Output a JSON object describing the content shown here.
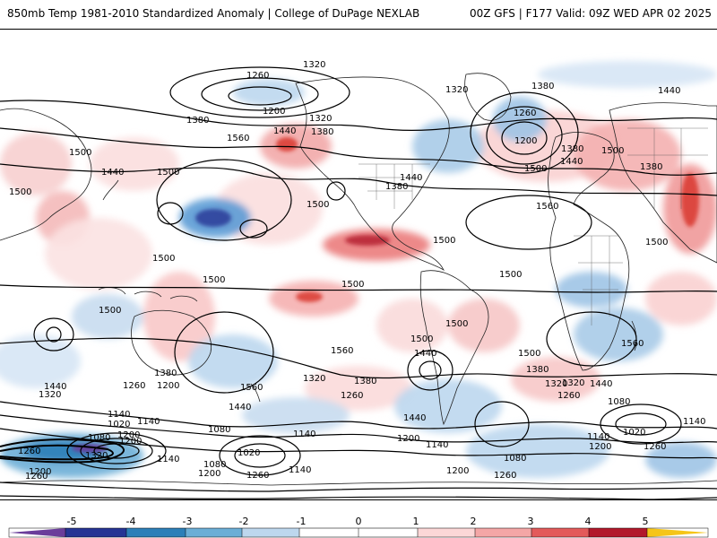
{
  "header": {
    "title": "850mb Temp 1981-2010 Standardized Anomaly | College of DuPage NEXLAB",
    "run_info": "00Z GFS | F177 Valid: 09Z WED APR 02 2025"
  },
  "colorbar": {
    "ticks": [
      "-5",
      "-4",
      "-3",
      "-2",
      "-1",
      "0",
      "1",
      "2",
      "3",
      "4",
      "5"
    ],
    "colors": [
      "#6a3d9a",
      "#253494",
      "#2c7fb8",
      "#6baed6",
      "#bdd7ee",
      "#ffffff",
      "#fcd7d7",
      "#f4a6a6",
      "#e35a5a",
      "#b2182b",
      "#67000d",
      "#f5c518"
    ]
  },
  "contour_labels": [
    {
      "text": "1320"
    },
    {
      "text": "1260"
    },
    {
      "text": "1200"
    },
    {
      "text": "1380"
    },
    {
      "text": "1440"
    },
    {
      "text": "1560"
    },
    {
      "text": "1500"
    },
    {
      "text": "1500"
    },
    {
      "text": "1440"
    },
    {
      "text": "1500"
    },
    {
      "text": "1320"
    },
    {
      "text": "1380"
    },
    {
      "text": "1440"
    },
    {
      "text": "1380"
    },
    {
      "text": "1500"
    },
    {
      "text": "1320"
    },
    {
      "text": "1380"
    },
    {
      "text": "1260"
    },
    {
      "text": "1200"
    },
    {
      "text": "1380"
    },
    {
      "text": "1440"
    },
    {
      "text": "1440"
    },
    {
      "text": "1500"
    },
    {
      "text": "1380"
    },
    {
      "text": "1500"
    },
    {
      "text": "1560"
    },
    {
      "text": "1500"
    },
    {
      "text": "1500"
    },
    {
      "text": "1500"
    },
    {
      "text": "1500"
    },
    {
      "text": "1500"
    },
    {
      "text": "1500"
    },
    {
      "text": "1500"
    },
    {
      "text": "1500"
    },
    {
      "text": "1560"
    },
    {
      "text": "1560"
    },
    {
      "text": "1500"
    },
    {
      "text": "1440"
    },
    {
      "text": "1380"
    },
    {
      "text": "1320"
    },
    {
      "text": "1500"
    },
    {
      "text": "1440"
    },
    {
      "text": "1320"
    },
    {
      "text": "1260"
    },
    {
      "text": "1200"
    },
    {
      "text": "1380"
    },
    {
      "text": "1320"
    },
    {
      "text": "1260"
    },
    {
      "text": "1440"
    },
    {
      "text": "1560"
    },
    {
      "text": "1440"
    },
    {
      "text": "1380"
    },
    {
      "text": "1320"
    },
    {
      "text": "1260"
    },
    {
      "text": "1440"
    },
    {
      "text": "1080"
    },
    {
      "text": "1140"
    },
    {
      "text": "1020"
    },
    {
      "text": "1140"
    },
    {
      "text": "1020"
    },
    {
      "text": "1080"
    },
    {
      "text": "1200"
    },
    {
      "text": "1140"
    },
    {
      "text": "1260"
    },
    {
      "text": "1080"
    },
    {
      "text": "1020"
    },
    {
      "text": "1140"
    },
    {
      "text": "1200"
    },
    {
      "text": "1260"
    },
    {
      "text": "1320"
    },
    {
      "text": "1140"
    },
    {
      "text": "1080"
    },
    {
      "text": "1200"
    },
    {
      "text": "1260"
    },
    {
      "text": "1200"
    },
    {
      "text": "1140"
    },
    {
      "text": "1200"
    },
    {
      "text": "1140"
    },
    {
      "text": "1200"
    },
    {
      "text": "1080"
    },
    {
      "text": "1260"
    },
    {
      "text": "1140"
    },
    {
      "text": "1200"
    },
    {
      "text": "1260"
    }
  ]
}
